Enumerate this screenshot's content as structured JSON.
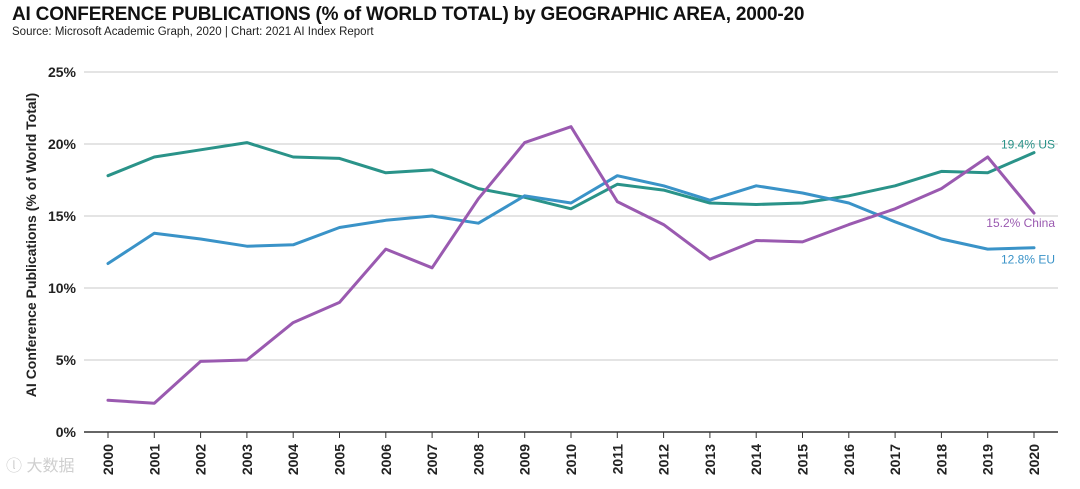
{
  "header": {
    "title": "AI CONFERENCE PUBLICATIONS (% of WORLD TOTAL) by GEOGRAPHIC AREA, 2000-20",
    "source": "Source: Microsoft Academic Graph, 2020 | Chart: 2021 AI Index Report"
  },
  "watermark": "ⓛ 大数据",
  "chart_data": {
    "type": "line",
    "title": "AI CONFERENCE PUBLICATIONS (% of WORLD TOTAL) by GEOGRAPHIC AREA, 2000-20",
    "xlabel": "",
    "ylabel": "AI Conference Publications (% of World Total)",
    "ylim": [
      0,
      25
    ],
    "y_ticks": [
      0,
      5,
      10,
      15,
      20,
      25
    ],
    "y_tick_labels": [
      "0%",
      "5%",
      "10%",
      "15%",
      "20%",
      "25%"
    ],
    "x": [
      "2000",
      "2001",
      "2002",
      "2003",
      "2004",
      "2005",
      "2006",
      "2007",
      "2008",
      "2009",
      "2010",
      "2011",
      "2012",
      "2013",
      "2014",
      "2015",
      "2016",
      "2017",
      "2018",
      "2019",
      "2020"
    ],
    "grid": true,
    "series": [
      {
        "name": "US",
        "color": "#2a9389",
        "end_label": "19.4% US",
        "values": [
          17.8,
          19.1,
          19.6,
          20.1,
          19.1,
          19.0,
          18.0,
          18.2,
          16.9,
          16.3,
          15.5,
          17.2,
          16.8,
          15.9,
          15.8,
          15.9,
          16.4,
          17.1,
          18.1,
          18.0,
          19.4
        ]
      },
      {
        "name": "EU",
        "color": "#3a93c8",
        "end_label": "12.8% EU",
        "values": [
          11.7,
          13.8,
          13.4,
          12.9,
          13.0,
          14.2,
          14.7,
          15.0,
          14.5,
          16.4,
          15.9,
          17.8,
          17.1,
          16.1,
          17.1,
          16.6,
          15.9,
          14.6,
          13.4,
          12.7,
          12.8
        ]
      },
      {
        "name": "China",
        "color": "#9a5ab0",
        "end_label": "15.2% China",
        "values": [
          2.2,
          2.0,
          4.9,
          5.0,
          7.6,
          9.0,
          12.7,
          11.4,
          16.2,
          20.1,
          21.2,
          16.0,
          14.4,
          12.0,
          13.3,
          13.2,
          14.4,
          15.5,
          16.9,
          19.1,
          15.2
        ]
      }
    ]
  }
}
